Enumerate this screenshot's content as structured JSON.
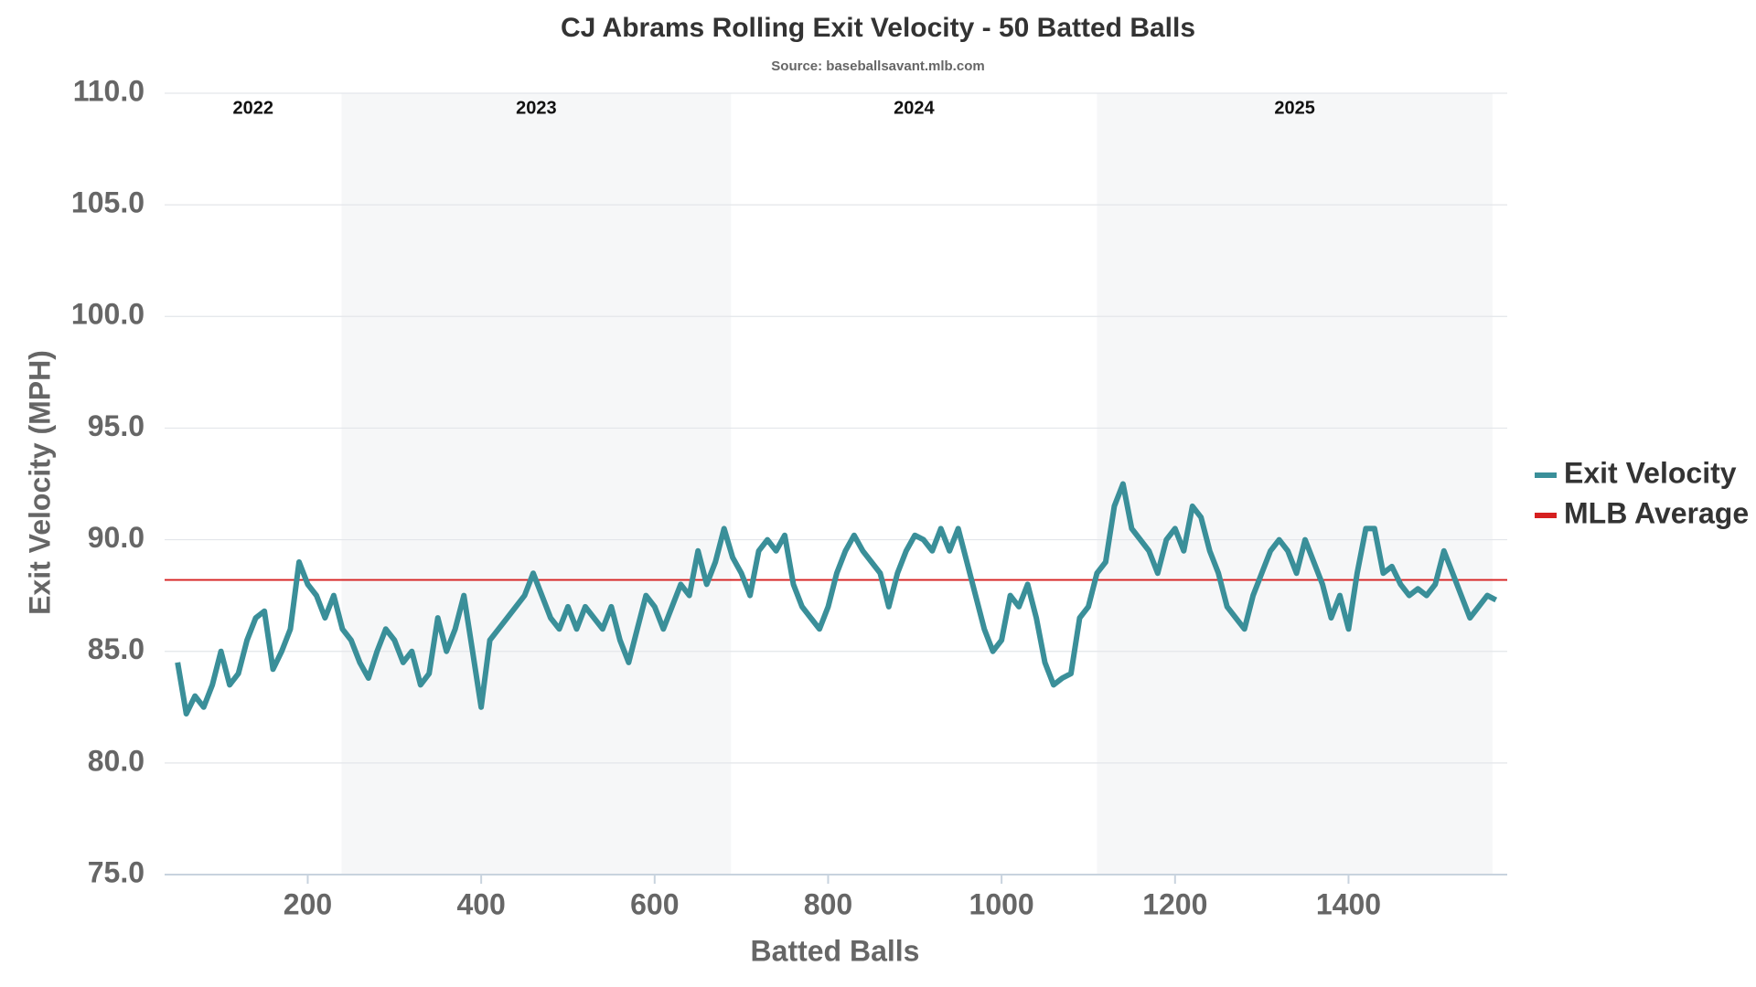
{
  "chart_data": {
    "type": "line",
    "title": "CJ Abrams Rolling Exit Velocity - 50 Batted Balls",
    "subtitle": "Source: baseballsavant.mlb.com",
    "x_label": "Batted Balls",
    "y_label": "Exit Velocity (MPH)",
    "xlim": [
      35,
      1583
    ],
    "ylim": [
      75,
      110
    ],
    "xticks": [
      200,
      400,
      600,
      800,
      1000,
      1200,
      1400
    ],
    "yticks": [
      {
        "value": 75,
        "label": "75.0"
      },
      {
        "value": 80,
        "label": "80.0"
      },
      {
        "value": 85,
        "label": "85.0"
      },
      {
        "value": 90,
        "label": "90.0"
      },
      {
        "value": 95,
        "label": "95.0"
      },
      {
        "value": 100,
        "label": "100.0"
      },
      {
        "value": 105,
        "label": "105.0"
      },
      {
        "value": 110,
        "label": "110.0"
      }
    ],
    "grid": true,
    "legend": "right",
    "seasons": [
      {
        "label": "2022",
        "start": 35,
        "end": 239,
        "shaded": false
      },
      {
        "label": "2023",
        "start": 239,
        "end": 688,
        "shaded": true
      },
      {
        "label": "2024",
        "start": 688,
        "end": 1110,
        "shaded": false
      },
      {
        "label": "2025",
        "start": 1110,
        "end": 1566,
        "shaded": true
      }
    ],
    "x": [
      50,
      60,
      70,
      80,
      90,
      100,
      110,
      120,
      130,
      140,
      150,
      160,
      170,
      180,
      190,
      200,
      210,
      220,
      230,
      240,
      250,
      260,
      270,
      280,
      290,
      300,
      310,
      320,
      330,
      340,
      350,
      360,
      370,
      380,
      390,
      400,
      410,
      420,
      430,
      440,
      450,
      460,
      470,
      480,
      490,
      500,
      510,
      520,
      530,
      540,
      550,
      560,
      570,
      580,
      590,
      600,
      610,
      620,
      630,
      640,
      650,
      660,
      670,
      680,
      690,
      700,
      710,
      720,
      730,
      740,
      750,
      760,
      770,
      780,
      790,
      800,
      810,
      820,
      830,
      840,
      850,
      860,
      870,
      880,
      890,
      900,
      910,
      920,
      930,
      940,
      950,
      960,
      970,
      980,
      990,
      1000,
      1010,
      1020,
      1030,
      1040,
      1050,
      1060,
      1070,
      1080,
      1090,
      1100,
      1110,
      1120,
      1130,
      1140,
      1150,
      1160,
      1170,
      1180,
      1190,
      1200,
      1210,
      1220,
      1230,
      1240,
      1250,
      1260,
      1270,
      1280,
      1290,
      1300,
      1310,
      1320,
      1330,
      1340,
      1350,
      1360,
      1370,
      1380,
      1390,
      1400,
      1410,
      1420,
      1430,
      1440,
      1450,
      1460,
      1470,
      1480,
      1490,
      1500,
      1510,
      1520,
      1530,
      1540,
      1550,
      1560,
      1570
    ],
    "series": [
      {
        "name": "Exit Velocity",
        "color": "#3a8f99",
        "values": [
          84.5,
          82.2,
          83,
          82.5,
          83.5,
          85,
          83.5,
          84,
          85.5,
          86.5,
          86.8,
          84.2,
          85,
          86,
          89,
          88,
          87.5,
          86.5,
          87.5,
          86,
          85.5,
          84.5,
          83.8,
          85,
          86,
          85.5,
          84.5,
          85,
          83.5,
          84,
          86.5,
          85,
          86,
          87.5,
          85,
          82.5,
          85.5,
          86,
          86.5,
          87,
          87.5,
          88.5,
          87.5,
          86.5,
          86,
          87,
          86,
          87,
          86.5,
          86,
          87,
          85.5,
          84.5,
          86,
          87.5,
          87,
          86,
          87,
          88,
          87.5,
          89.5,
          88,
          89,
          90.5,
          89.2,
          88.5,
          87.5,
          89.5,
          90,
          89.5,
          90.2,
          88,
          87,
          86.5,
          86,
          87,
          88.5,
          89.5,
          90.2,
          89.5,
          89,
          88.5,
          87,
          88.5,
          89.5,
          90.2,
          90,
          89.5,
          90.5,
          89.5,
          90.5,
          89,
          87.5,
          86,
          85,
          85.5,
          87.5,
          87,
          88,
          86.5,
          84.5,
          83.5,
          83.8,
          84,
          86.5,
          87,
          88.5,
          89,
          91.5,
          92.5,
          90.5,
          90,
          89.5,
          88.5,
          90,
          90.5,
          89.5,
          91.5,
          91,
          89.5,
          88.5,
          87,
          86.5,
          86,
          87.5,
          88.5,
          89.5,
          90,
          89.5,
          88.5,
          90,
          89,
          88,
          86.5,
          87.5,
          86,
          88.5,
          90.5,
          90.5,
          88.5,
          88.8,
          88,
          87.5,
          87.8,
          87.5,
          88,
          89.5,
          88.5,
          87.5,
          86.5,
          87,
          87.5,
          87.3
        ]
      }
    ],
    "reference_lines": [
      {
        "name": "MLB Average",
        "value": 88.2,
        "color": "#d62020"
      }
    ]
  }
}
